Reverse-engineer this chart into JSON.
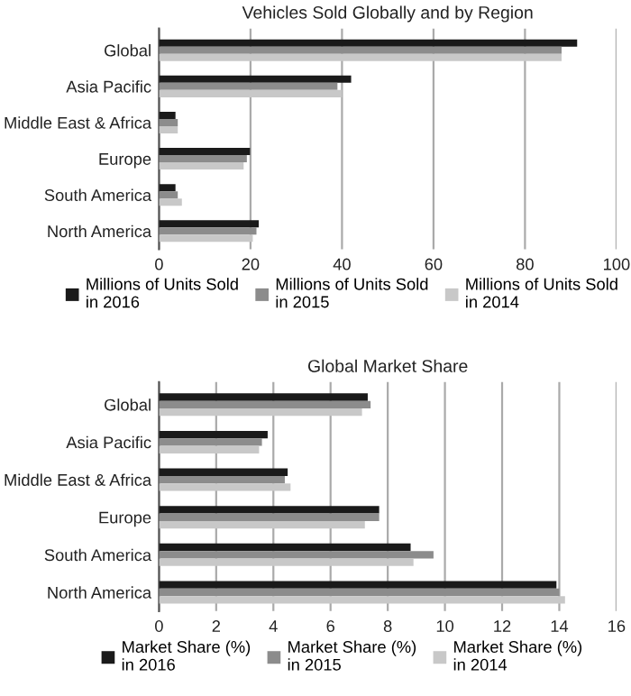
{
  "chart_data": [
    {
      "type": "bar",
      "orientation": "horizontal",
      "title": "Vehicles Sold Globally and by Region",
      "categories": [
        "Global",
        "Asia Pacific",
        "Middle East & Africa",
        "Europe",
        "South America",
        "North America"
      ],
      "series": [
        {
          "name": "Millions of Units Sold in 2016",
          "color": "#1a1a1a",
          "values": [
            91.4,
            42.0,
            3.6,
            19.9,
            3.6,
            21.8
          ]
        },
        {
          "name": "Millions of Units Sold in 2015",
          "color": "#8c8c8c",
          "values": [
            88.0,
            39.0,
            4.1,
            19.2,
            4.1,
            21.3
          ]
        },
        {
          "name": "Millions of Units Sold in 2014",
          "color": "#c8c8c8",
          "values": [
            88.0,
            40.0,
            4.1,
            18.5,
            5.0,
            20.5
          ]
        }
      ],
      "xlim": [
        0,
        100
      ],
      "xticks": [
        0,
        20,
        40,
        60,
        80,
        100
      ],
      "grid": "x",
      "legend": "bottom"
    },
    {
      "type": "bar",
      "orientation": "horizontal",
      "title": "Global Market Share",
      "categories": [
        "Global",
        "Asia Pacific",
        "Middle East & Africa",
        "Europe",
        "South America",
        "North America"
      ],
      "series": [
        {
          "name": "Market Share (%) in 2016",
          "color": "#1a1a1a",
          "values": [
            7.3,
            3.8,
            4.5,
            7.7,
            8.8,
            13.9
          ]
        },
        {
          "name": "Market Share (%) in 2015",
          "color": "#8c8c8c",
          "values": [
            7.4,
            3.6,
            4.4,
            7.7,
            9.6,
            14.0
          ]
        },
        {
          "name": "Market Share (%) in 2014",
          "color": "#c8c8c8",
          "values": [
            7.1,
            3.5,
            4.6,
            7.2,
            8.9,
            14.2
          ]
        }
      ],
      "xlim": [
        0,
        16
      ],
      "xticks": [
        0,
        2,
        4,
        6,
        8,
        10,
        12,
        14,
        16
      ],
      "grid": "x",
      "legend": "bottom"
    }
  ]
}
